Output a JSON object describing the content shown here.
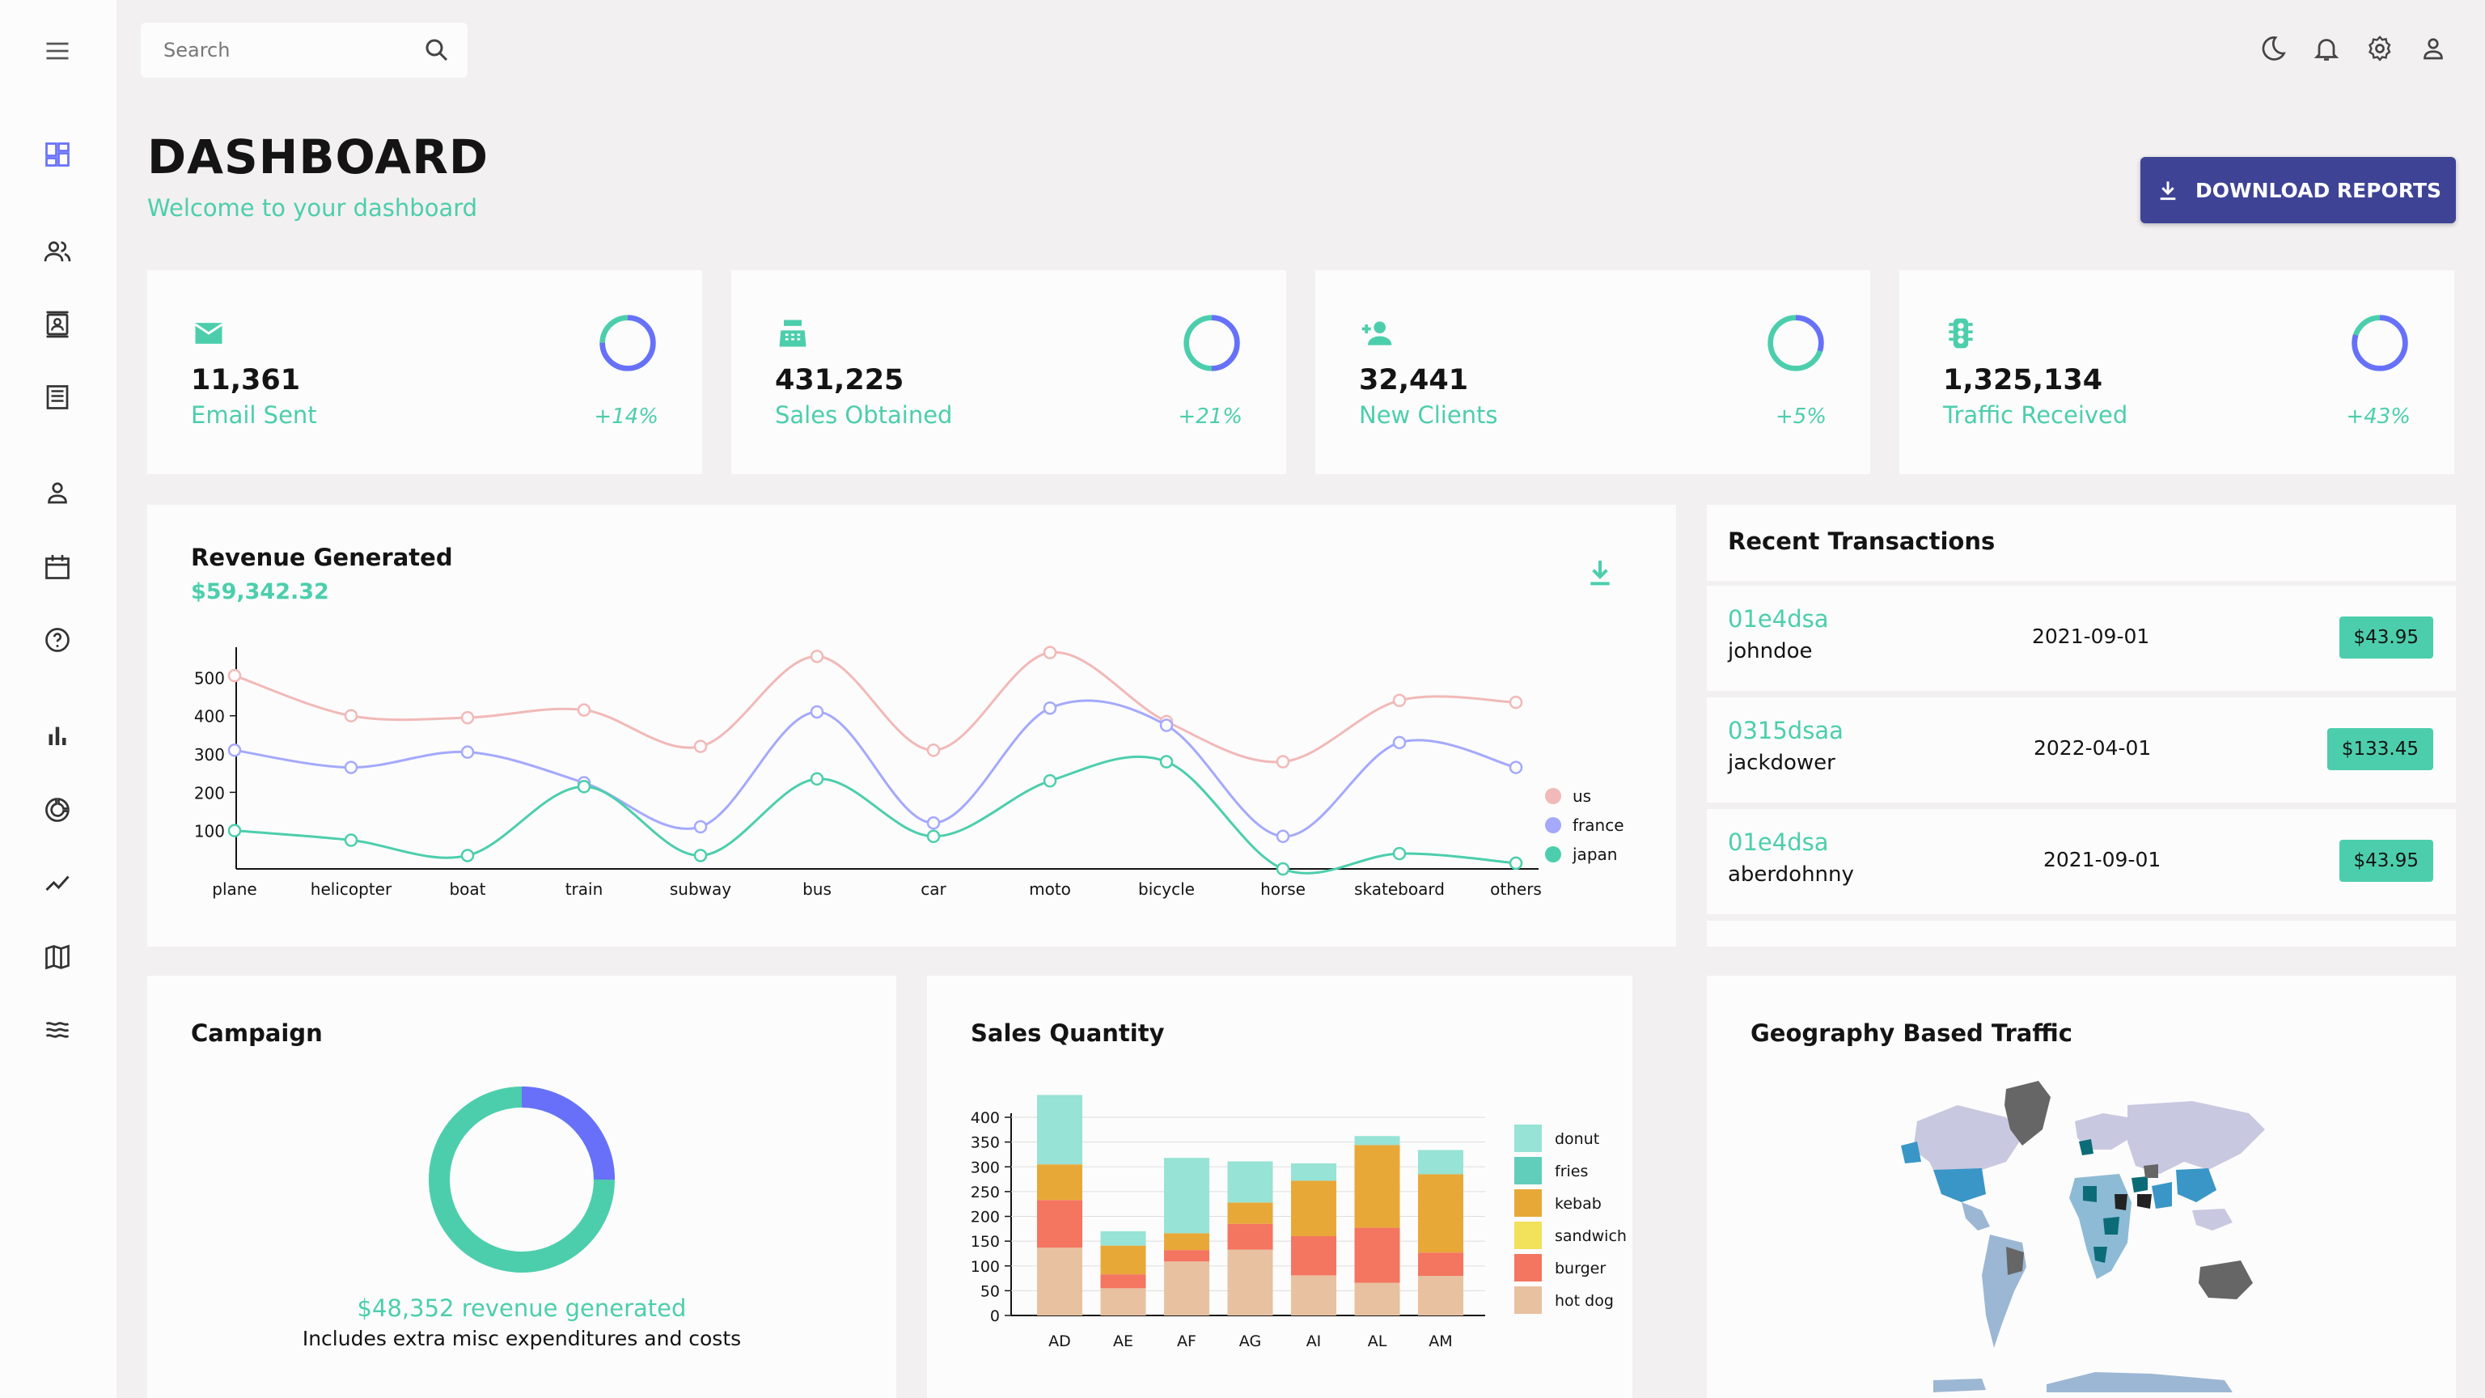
{
  "search": {
    "placeholder": "Search"
  },
  "header": {
    "title": "DASHBOARD",
    "subtitle": "Welcome to your dashboard",
    "download_label": "DOWNLOAD REPORTS"
  },
  "stats": [
    {
      "value": "11,361",
      "label": "Email Sent",
      "increase": "+14%",
      "progress": 0.75,
      "icon": "email-icon"
    },
    {
      "value": "431,225",
      "label": "Sales Obtained",
      "increase": "+21%",
      "progress": 0.5,
      "icon": "point-of-sale-icon"
    },
    {
      "value": "32,441",
      "label": "New Clients",
      "increase": "+5%",
      "progress": 0.3,
      "icon": "person-add-icon"
    },
    {
      "value": "1,325,134",
      "label": "Traffic Received",
      "increase": "+43%",
      "progress": 0.8,
      "icon": "traffic-icon"
    }
  ],
  "revenue": {
    "title": "Revenue Generated",
    "amount": "$59,342.32"
  },
  "transactions": {
    "title": "Recent Transactions",
    "items": [
      {
        "id": "01e4dsa",
        "user": "johndoe",
        "date": "2021-09-01",
        "cost": "$43.95"
      },
      {
        "id": "0315dsaa",
        "user": "jackdower",
        "date": "2022-04-01",
        "cost": "$133.45"
      },
      {
        "id": "01e4dsa",
        "user": "aberdohnny",
        "date": "2021-09-01",
        "cost": "$43.95"
      }
    ]
  },
  "campaign": {
    "title": "Campaign",
    "amount_text": "$48,352 revenue generated",
    "note": "Includes extra misc expenditures and costs",
    "progress": 0.25
  },
  "sales_quantity": {
    "title": "Sales Quantity"
  },
  "geography": {
    "title": "Geography Based Traffic"
  },
  "colors": {
    "accent_green": "#4cceac",
    "accent_blue": "#6870fa",
    "button_bg": "#3e4396",
    "background": "#f2f0f0",
    "panel": "#fcfcfc"
  },
  "chart_data": [
    {
      "type": "line",
      "x": [
        "plane",
        "helicopter",
        "boat",
        "train",
        "subway",
        "bus",
        "car",
        "moto",
        "bicycle",
        "horse",
        "skateboard",
        "others"
      ],
      "series": [
        {
          "name": "us",
          "color": "#f1b9b7",
          "values": [
            505,
            400,
            395,
            415,
            320,
            555,
            310,
            565,
            385,
            280,
            440,
            435
          ]
        },
        {
          "name": "france",
          "color": "#a4a9fc",
          "values": [
            310,
            265,
            305,
            225,
            110,
            410,
            120,
            420,
            375,
            85,
            330,
            265
          ]
        },
        {
          "name": "japan",
          "color": "#4cceac",
          "values": [
            100,
            75,
            35,
            215,
            35,
            235,
            85,
            230,
            280,
            0,
            40,
            15
          ]
        }
      ],
      "yticks": [
        100,
        200,
        300,
        400,
        500
      ],
      "ylim": [
        0,
        560
      ],
      "legend": "right"
    },
    {
      "type": "bar",
      "stacked": true,
      "categories": [
        "AD",
        "AE",
        "AF",
        "AG",
        "AI",
        "AL",
        "AM"
      ],
      "series": [
        {
          "name": "hot dog",
          "color": "#e8c1a0",
          "values": [
            137,
            55,
            109,
            133,
            81,
            66,
            80
          ]
        },
        {
          "name": "burger",
          "color": "#f47560",
          "values": [
            96,
            28,
            23,
            52,
            79,
            111,
            47
          ]
        },
        {
          "name": "sandwich",
          "color": "#f1e15b",
          "values": [
            0,
            0,
            0,
            0,
            0,
            0,
            0
          ]
        },
        {
          "name": "kebab",
          "color": "#e8a838",
          "values": [
            72,
            58,
            34,
            43,
            112,
            167,
            158
          ]
        },
        {
          "name": "fries",
          "color": "#61cdbb",
          "values": [
            0,
            0,
            0,
            0,
            0,
            0,
            0
          ]
        },
        {
          "name": "donut",
          "color": "#97e3d5",
          "values": [
            140,
            29,
            152,
            83,
            35,
            18,
            49
          ]
        }
      ],
      "yticks": [
        0,
        50,
        100,
        150,
        200,
        250,
        300,
        350,
        400
      ],
      "ylim": [
        0,
        420
      ],
      "legend": "right"
    }
  ]
}
